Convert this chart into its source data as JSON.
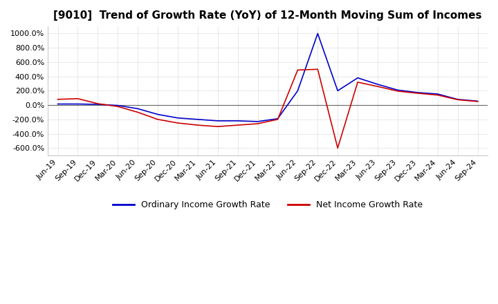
{
  "title": "[9010]  Trend of Growth Rate (YoY) of 12-Month Moving Sum of Incomes",
  "title_fontsize": 11,
  "legend_labels": [
    "Ordinary Income Growth Rate",
    "Net Income Growth Rate"
  ],
  "legend_colors": [
    "#0000CC",
    "#CC0000"
  ],
  "ylim": [
    -700,
    1100
  ],
  "yticks": [
    -600,
    -400,
    -200,
    0,
    200,
    400,
    600,
    800,
    1000
  ],
  "ytick_labels": [
    "-600.0%",
    "-400.0%",
    "-200.0%",
    "0.0%",
    "200.0%",
    "400.0%",
    "600.0%",
    "800.0%",
    "1000.0%"
  ],
  "background_color": "#FFFFFF",
  "plot_background_color": "#FFFFFF",
  "grid_color": "#AAAAAA",
  "x_labels": [
    "Jun-19",
    "Sep-19",
    "Dec-19",
    "Mar-20",
    "Jun-20",
    "Sep-20",
    "Dec-20",
    "Mar-21",
    "Jun-21",
    "Sep-21",
    "Dec-21",
    "Mar-22",
    "Jun-22",
    "Sep-22",
    "Dec-22",
    "Mar-23",
    "Jun-23",
    "Sep-23",
    "Dec-23",
    "Mar-24",
    "Jun-24",
    "Sep-24"
  ],
  "ordinary_income": [
    15,
    15,
    10,
    -5,
    -50,
    -130,
    -180,
    -200,
    -220,
    -220,
    -230,
    -190,
    200,
    1000,
    200,
    380,
    290,
    210,
    175,
    155,
    80,
    55
  ],
  "net_income": [
    80,
    90,
    20,
    -20,
    -100,
    -200,
    -250,
    -280,
    -300,
    -280,
    -260,
    -200,
    490,
    500,
    -600,
    320,
    260,
    195,
    165,
    140,
    75,
    50
  ]
}
